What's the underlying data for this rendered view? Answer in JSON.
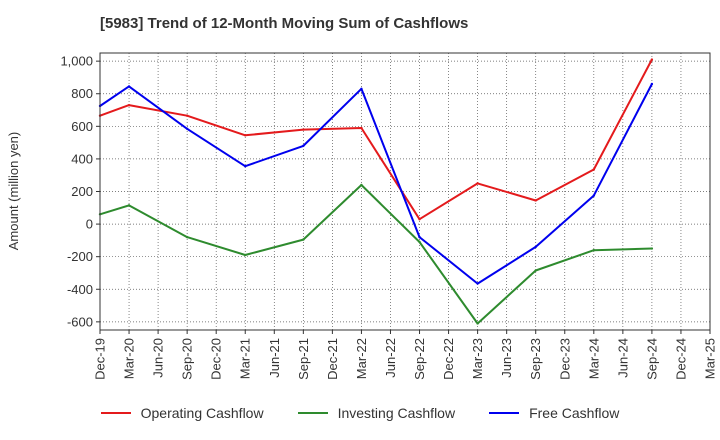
{
  "title": "[5983]  Trend of 12-Month Moving Sum of Cashflows",
  "colors": {
    "operating": "#e41a1c",
    "investing": "#2e8b2e",
    "free": "#0000ee"
  },
  "chart_data": {
    "type": "line",
    "title": "[5983]  Trend of 12-Month Moving Sum of Cashflows",
    "xlabel": "",
    "ylabel": "Amount (million yen)",
    "ylim": [
      -650,
      1050
    ],
    "yticks": [
      -600,
      -400,
      -200,
      0,
      200,
      400,
      600,
      800,
      1000
    ],
    "ytick_labels": [
      "-600",
      "-400",
      "-200",
      "0",
      "200",
      "400",
      "600",
      "800",
      "1,000"
    ],
    "categories": [
      "Dec-19",
      "Mar-20",
      "Jun-20",
      "Sep-20",
      "Dec-20",
      "Mar-21",
      "Jun-21",
      "Sep-21",
      "Dec-21",
      "Mar-22",
      "Jun-22",
      "Sep-22",
      "Dec-22",
      "Mar-23",
      "Jun-23",
      "Sep-23",
      "Dec-23",
      "Mar-24",
      "Jun-24",
      "Sep-24",
      "Dec-24",
      "Mar-25"
    ],
    "grid": true,
    "legend_position": "bottom",
    "series": [
      {
        "name": "Operating Cashflow",
        "color_key": "operating",
        "values": [
          665,
          730,
          null,
          665,
          null,
          545,
          null,
          580,
          null,
          590,
          null,
          30,
          null,
          250,
          null,
          145,
          null,
          335,
          null,
          1010,
          null,
          null
        ]
      },
      {
        "name": "Investing Cashflow",
        "color_key": "investing",
        "values": [
          60,
          115,
          null,
          -80,
          null,
          -190,
          null,
          -95,
          null,
          240,
          null,
          -110,
          null,
          -610,
          null,
          -285,
          null,
          -160,
          null,
          -150,
          null,
          null
        ]
      },
      {
        "name": "Free Cashflow",
        "color_key": "free",
        "values": [
          725,
          845,
          null,
          585,
          null,
          355,
          null,
          480,
          null,
          830,
          null,
          -80,
          null,
          -365,
          null,
          -140,
          null,
          175,
          null,
          860,
          null,
          null
        ]
      }
    ]
  }
}
